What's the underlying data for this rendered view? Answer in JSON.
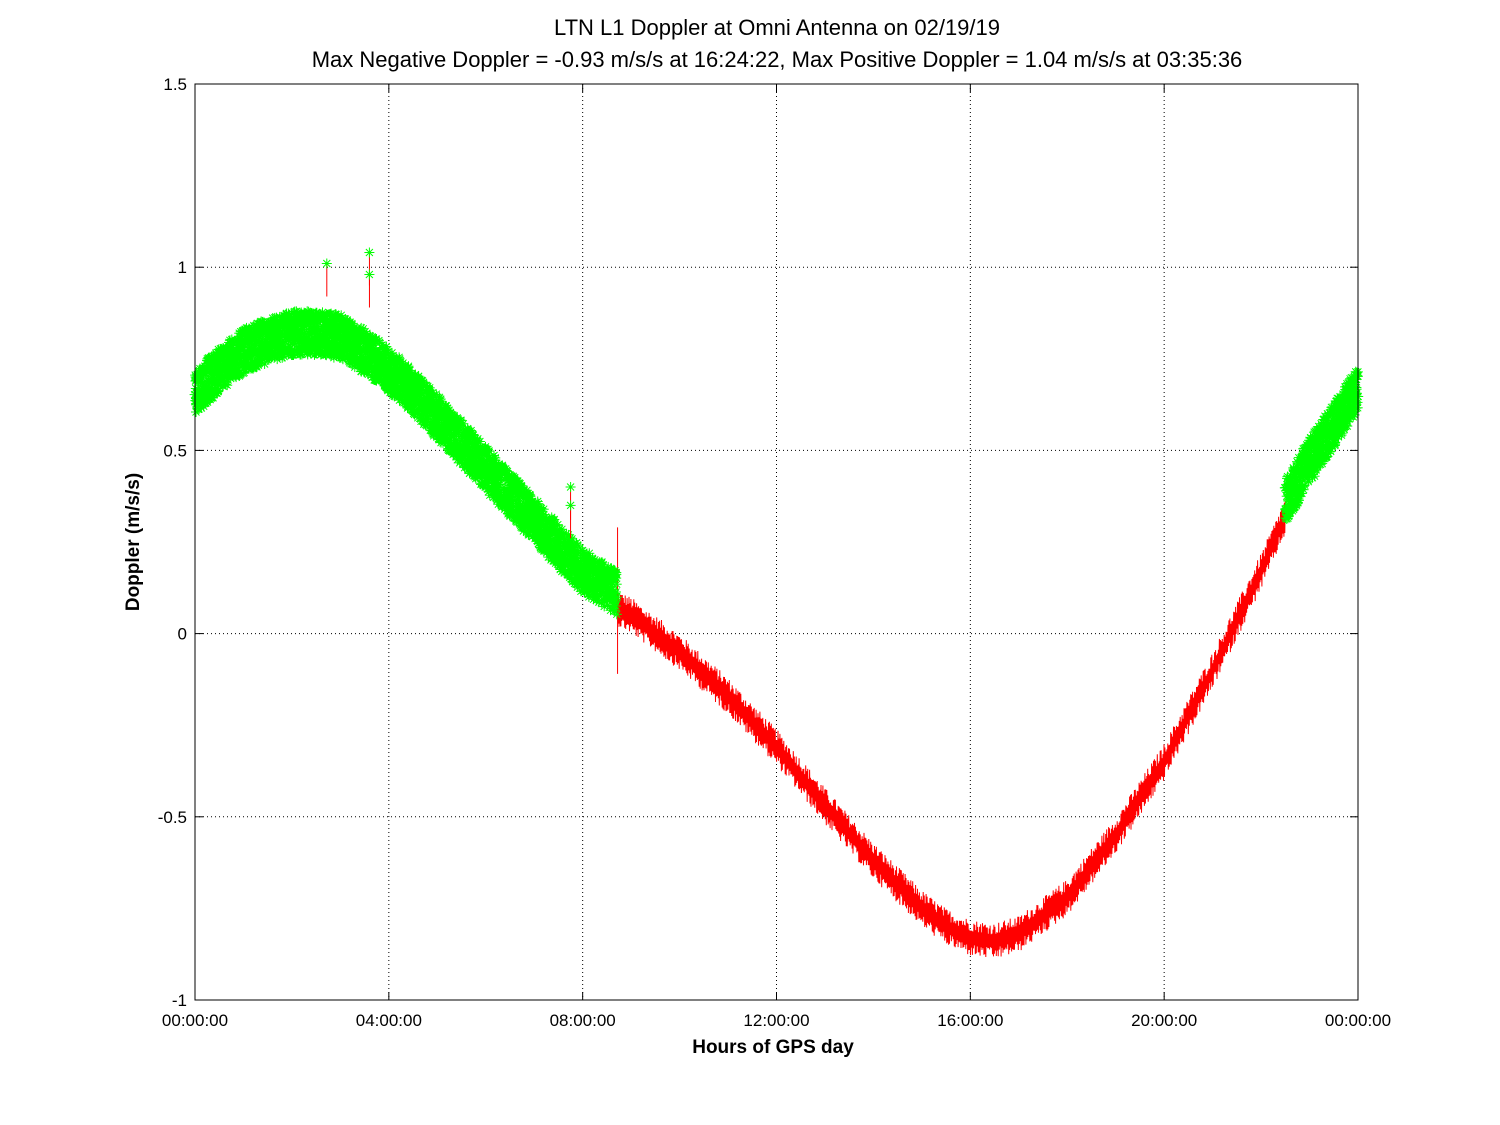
{
  "chart_data": {
    "type": "scatter",
    "title": "LTN  L1 Doppler at Omni Antenna on 02/19/19",
    "subtitle": "Max Negative Doppler = -0.93 m/s/s  at 16:24:22,   Max Positive Doppler = 1.04 m/s/s  at 03:35:36",
    "xlabel": "Hours of GPS day",
    "ylabel": "Doppler (m/s/s)",
    "xlim": [
      0,
      24
    ],
    "ylim": [
      -1,
      1.5
    ],
    "x_unit": "hours",
    "x_ticks": [
      0,
      4,
      8,
      12,
      16,
      20,
      24
    ],
    "x_tick_labels": [
      "00:00:00",
      "04:00:00",
      "08:00:00",
      "12:00:00",
      "16:00:00",
      "20:00:00",
      "00:00:00"
    ],
    "y_ticks": [
      -1,
      -0.5,
      0,
      0.5,
      1,
      1.5
    ],
    "y_tick_labels": [
      "-1",
      "-0.5",
      "0",
      "0.5",
      "1",
      "1.5"
    ],
    "grid": true,
    "legend": "none",
    "max_negative": {
      "value": -0.93,
      "time": "16:24:22"
    },
    "max_positive": {
      "value": 1.04,
      "time": "03:35:36"
    },
    "colors": {
      "green_marker": "#00ff00",
      "red_line": "#ff0000",
      "grid": "#000000"
    },
    "series": [
      {
        "color": "#00ff00",
        "marker": "asterisk",
        "x": [
          0.0,
          0.5,
          1.0,
          1.5,
          2.0,
          2.5,
          3.0,
          3.5,
          4.0,
          4.5,
          5.0,
          5.5,
          6.0,
          6.5,
          7.0,
          7.5,
          8.0,
          8.7
        ],
        "y": [
          0.66,
          0.72,
          0.77,
          0.8,
          0.82,
          0.82,
          0.81,
          0.77,
          0.72,
          0.66,
          0.59,
          0.52,
          0.45,
          0.38,
          0.31,
          0.24,
          0.17,
          0.11
        ],
        "spread": 0.06
      },
      {
        "color": "#ff0000",
        "marker": "line",
        "x": [
          8.7,
          9.0,
          10.0,
          11.0,
          12.0,
          13.0,
          14.0,
          15.0,
          15.5,
          16.0,
          16.5,
          17.0,
          18.0,
          19.0,
          20.0,
          21.0,
          22.0,
          22.5
        ],
        "y": [
          0.07,
          0.05,
          -0.05,
          -0.17,
          -0.31,
          -0.47,
          -0.62,
          -0.75,
          -0.8,
          -0.83,
          -0.84,
          -0.82,
          -0.72,
          -0.55,
          -0.35,
          -0.1,
          0.17,
          0.32
        ],
        "spread": 0.05
      },
      {
        "color": "#00ff00",
        "marker": "asterisk",
        "x": [
          22.5,
          23.0,
          23.5,
          24.0
        ],
        "y": [
          0.36,
          0.47,
          0.57,
          0.67
        ],
        "spread": 0.06
      }
    ],
    "annotations": [
      {
        "x": 2.72,
        "y": 1.01
      },
      {
        "x": 3.6,
        "y": 1.04
      },
      {
        "x": 3.6,
        "y": 0.98
      },
      {
        "x": 7.75,
        "y": 0.4
      },
      {
        "x": 7.75,
        "y": 0.35
      }
    ]
  }
}
